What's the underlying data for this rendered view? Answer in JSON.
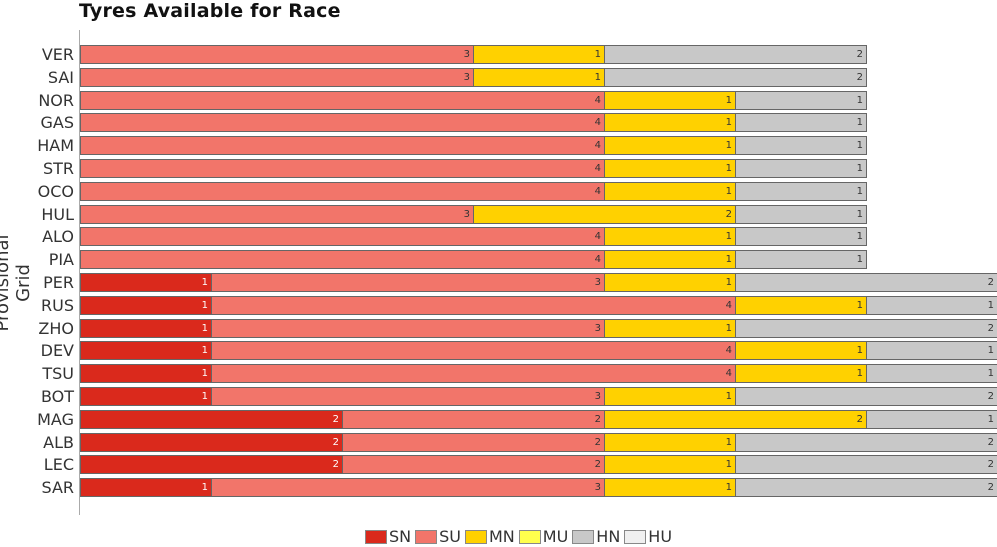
{
  "chart_data": {
    "type": "bar",
    "orientation": "horizontal",
    "stacked": true,
    "title": "Tyres Available for Race",
    "xlabel": "",
    "ylabel": "Provisional Grid",
    "categories": [
      "VER",
      "SAI",
      "NOR",
      "GAS",
      "HAM",
      "STR",
      "OCO",
      "HUL",
      "ALO",
      "PIA",
      "PER",
      "RUS",
      "ZHO",
      "DEV",
      "TSU",
      "BOT",
      "MAG",
      "ALB",
      "LEC",
      "SAR"
    ],
    "series": [
      {
        "name": "SN",
        "color": "#da291c",
        "values": [
          0,
          0,
          0,
          0,
          0,
          0,
          0,
          0,
          0,
          0,
          1,
          1,
          1,
          1,
          1,
          1,
          2,
          2,
          2,
          1
        ]
      },
      {
        "name": "SU",
        "color": "#f2756a",
        "values": [
          3,
          3,
          4,
          4,
          4,
          4,
          4,
          3,
          4,
          4,
          3,
          4,
          3,
          4,
          4,
          3,
          2,
          2,
          2,
          3
        ]
      },
      {
        "name": "MN",
        "color": "#ffd100",
        "values": [
          1,
          1,
          1,
          1,
          1,
          1,
          1,
          2,
          1,
          1,
          1,
          1,
          1,
          1,
          1,
          1,
          2,
          1,
          1,
          1
        ]
      },
      {
        "name": "MU",
        "color": "#ffff4d",
        "values": [
          0,
          0,
          0,
          0,
          0,
          0,
          0,
          0,
          0,
          0,
          0,
          0,
          0,
          0,
          0,
          0,
          0,
          0,
          0,
          0
        ]
      },
      {
        "name": "HN",
        "color": "#c8c8c8",
        "values": [
          2,
          2,
          1,
          1,
          1,
          1,
          1,
          1,
          1,
          1,
          2,
          1,
          2,
          1,
          1,
          2,
          1,
          2,
          2,
          2
        ]
      },
      {
        "name": "HU",
        "color": "#f0f0f0",
        "values": [
          0,
          0,
          0,
          0,
          0,
          0,
          0,
          0,
          0,
          0,
          0,
          0,
          0,
          0,
          0,
          0,
          0,
          0,
          0,
          0
        ]
      }
    ],
    "xlim": [
      0,
      7
    ],
    "grid": false,
    "legend_position": "bottom"
  },
  "legend": [
    {
      "label": "SN",
      "color": "#da291c"
    },
    {
      "label": "SU",
      "color": "#f2756a"
    },
    {
      "label": "MN",
      "color": "#ffd100"
    },
    {
      "label": "MU",
      "color": "#ffff4d"
    },
    {
      "label": "HN",
      "color": "#c8c8c8"
    },
    {
      "label": "HU",
      "color": "#f0f0f0"
    }
  ]
}
